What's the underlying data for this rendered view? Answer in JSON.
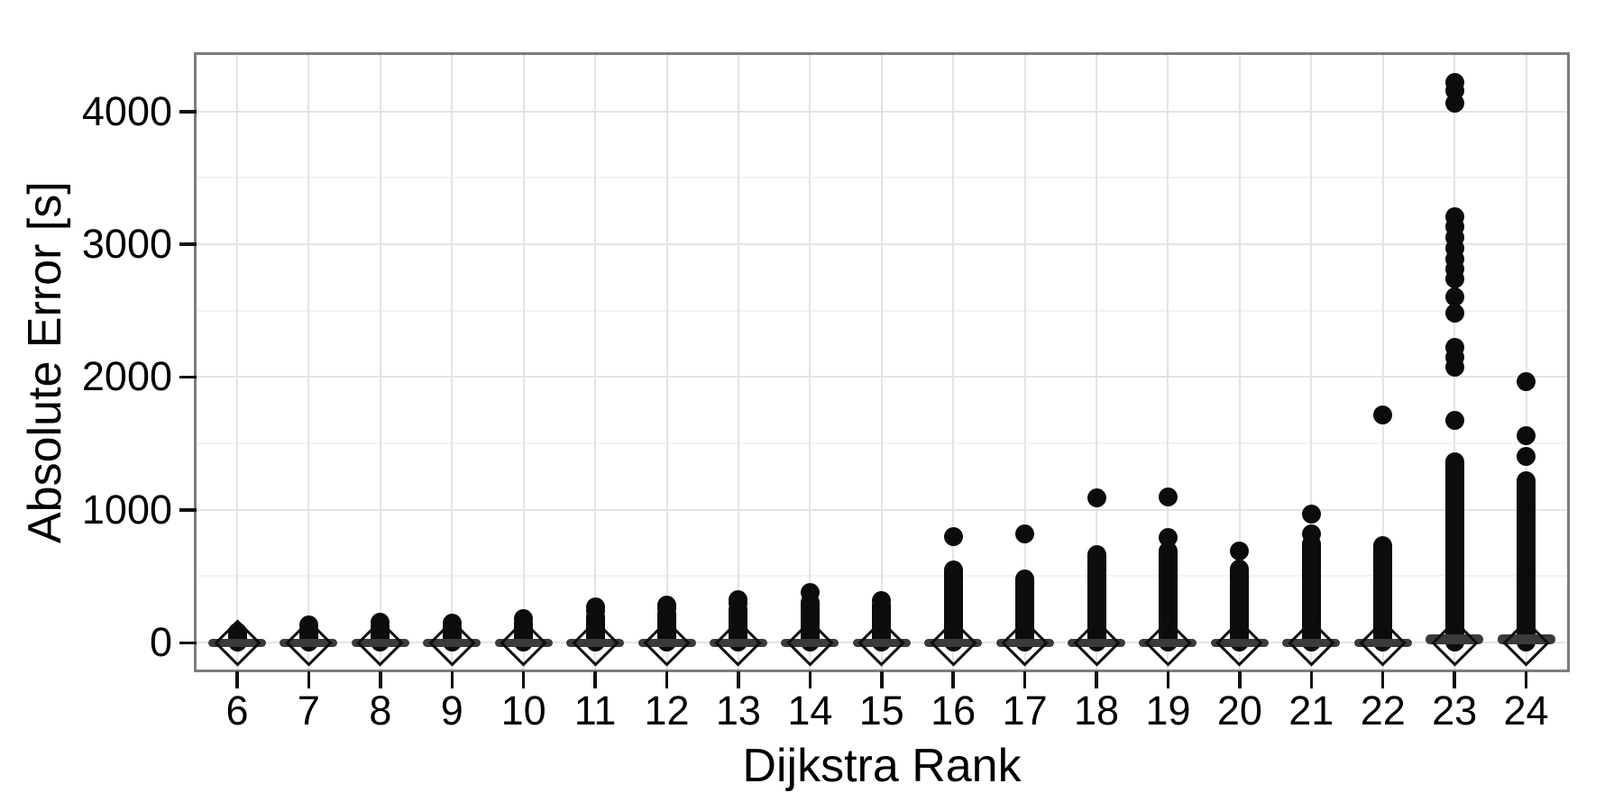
{
  "chart_data": {
    "type": "scatter",
    "style": "boxplot per category, compressed near zero, with open mean diamond at 0 and black outlier dots stacked vertically",
    "title": "",
    "xlabel": "Dijkstra Rank",
    "ylabel": "Absolute Error [s]",
    "x_tick_labels": [
      "6",
      "7",
      "8",
      "9",
      "10",
      "11",
      "12",
      "13",
      "14",
      "15",
      "16",
      "17",
      "18",
      "19",
      "20",
      "21",
      "22",
      "23",
      "24"
    ],
    "y_tick_labels": [
      "0",
      "1000",
      "2000",
      "3000",
      "4000"
    ],
    "y_tick_values": [
      0,
      1000,
      2000,
      3000,
      4000
    ],
    "y_minor_values": [
      500,
      1500,
      2500,
      3500
    ],
    "ylim": [
      -205,
      4430
    ],
    "grid": "major and minor horizontal gridlines, major vertical gridline at each category",
    "legend": "none",
    "marker_colors": {
      "outliers": "#0c0c0c",
      "box": "#3b3b3b",
      "mean_diamond_stroke": "#0e0e0e"
    },
    "ranks": [
      {
        "rank": "6",
        "box_center": 0,
        "mean": 0,
        "dense_max": 55,
        "outliers": [
          75
        ]
      },
      {
        "rank": "7",
        "box_center": 0,
        "mean": 0,
        "dense_max": 100,
        "outliers": [
          135
        ]
      },
      {
        "rank": "8",
        "box_center": 0,
        "mean": 0,
        "dense_max": 120,
        "outliers": [
          155
        ]
      },
      {
        "rank": "9",
        "box_center": 0,
        "mean": 0,
        "dense_max": 115,
        "outliers": [
          145
        ]
      },
      {
        "rank": "10",
        "box_center": 0,
        "mean": 0,
        "dense_max": 145,
        "outliers": [
          178
        ]
      },
      {
        "rank": "11",
        "box_center": 0,
        "mean": 0,
        "dense_max": 195,
        "outliers": [
          240,
          268
        ]
      },
      {
        "rank": "12",
        "box_center": 0,
        "mean": 0,
        "dense_max": 215,
        "outliers": [
          252,
          280
        ]
      },
      {
        "rank": "13",
        "box_center": 0,
        "mean": 0,
        "dense_max": 250,
        "outliers": [
          295,
          325
        ]
      },
      {
        "rank": "14",
        "box_center": 0,
        "mean": 0,
        "dense_max": 300,
        "outliers": [
          380
        ]
      },
      {
        "rank": "15",
        "box_center": 0,
        "mean": 0,
        "dense_max": 285,
        "outliers": [
          318
        ]
      },
      {
        "rank": "16",
        "box_center": 0,
        "mean": 0,
        "dense_max": 543,
        "outliers": [
          800
        ]
      },
      {
        "rank": "17",
        "box_center": 0,
        "mean": 0,
        "dense_max": 480,
        "outliers": [
          820
        ]
      },
      {
        "rank": "18",
        "box_center": 0,
        "mean": 0,
        "dense_max": 665,
        "outliers": [
          1090
        ]
      },
      {
        "rank": "19",
        "box_center": 0,
        "mean": 0,
        "dense_max": 686,
        "outliers": [
          788,
          1093
        ]
      },
      {
        "rank": "20",
        "box_center": 0,
        "mean": 0,
        "dense_max": 550,
        "outliers": [
          686
        ]
      },
      {
        "rank": "21",
        "box_center": 0,
        "mean": 0,
        "dense_max": 745,
        "outliers": [
          820,
          970
        ]
      },
      {
        "rank": "22",
        "box_center": 0,
        "mean": 0,
        "dense_max": 732,
        "outliers": [
          1717
        ]
      },
      {
        "rank": "23",
        "box_center": 25,
        "mean": 0,
        "dense_max": 1360,
        "outliers": [
          1670,
          2070,
          2145,
          2225,
          2480,
          2600,
          2740,
          2810,
          2890,
          2970,
          3050,
          3130,
          3205,
          4060,
          4160,
          4220
        ]
      },
      {
        "rank": "24",
        "box_center": 22,
        "mean": 0,
        "dense_max": 1220,
        "outliers": [
          1400,
          1560,
          1967
        ]
      }
    ]
  }
}
